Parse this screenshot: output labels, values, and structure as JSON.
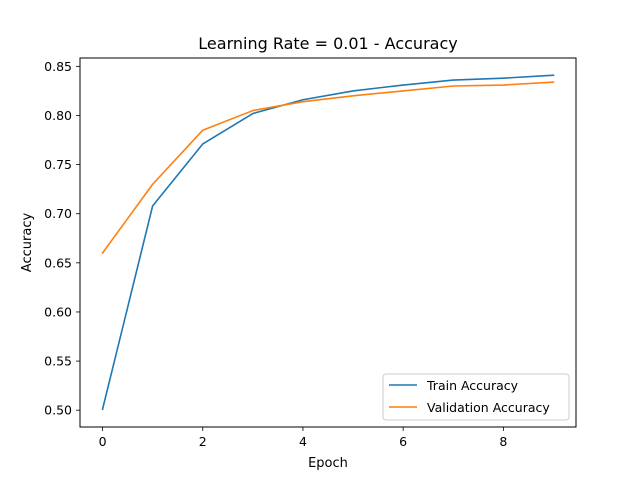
{
  "chart_data": {
    "type": "line",
    "title": "Learning Rate = 0.01 - Accuracy",
    "xlabel": "Epoch",
    "ylabel": "Accuracy",
    "xlim": [
      -0.45,
      9.45
    ],
    "ylim": [
      0.4829,
      0.8585
    ],
    "xticks": [
      0,
      2,
      4,
      6,
      8
    ],
    "xtick_labels": [
      "0",
      "2",
      "4",
      "6",
      "8"
    ],
    "yticks": [
      0.5,
      0.55,
      0.6,
      0.65,
      0.7,
      0.75,
      0.8,
      0.85
    ],
    "ytick_labels": [
      "0.50",
      "0.55",
      "0.60",
      "0.65",
      "0.70",
      "0.75",
      "0.80",
      "0.85"
    ],
    "grid": false,
    "legend_position": "lower-right",
    "x": [
      0,
      1,
      2,
      3,
      4,
      5,
      6,
      7,
      8,
      9
    ],
    "series": [
      {
        "name": "Train Accuracy",
        "color": "#1f77b4",
        "values": [
          0.501,
          0.708,
          0.771,
          0.802,
          0.816,
          0.825,
          0.831,
          0.836,
          0.838,
          0.841
        ]
      },
      {
        "name": "Validation Accuracy",
        "color": "#ff7f0e",
        "values": [
          0.66,
          0.73,
          0.785,
          0.805,
          0.814,
          0.82,
          0.825,
          0.83,
          0.831,
          0.834
        ]
      }
    ]
  }
}
